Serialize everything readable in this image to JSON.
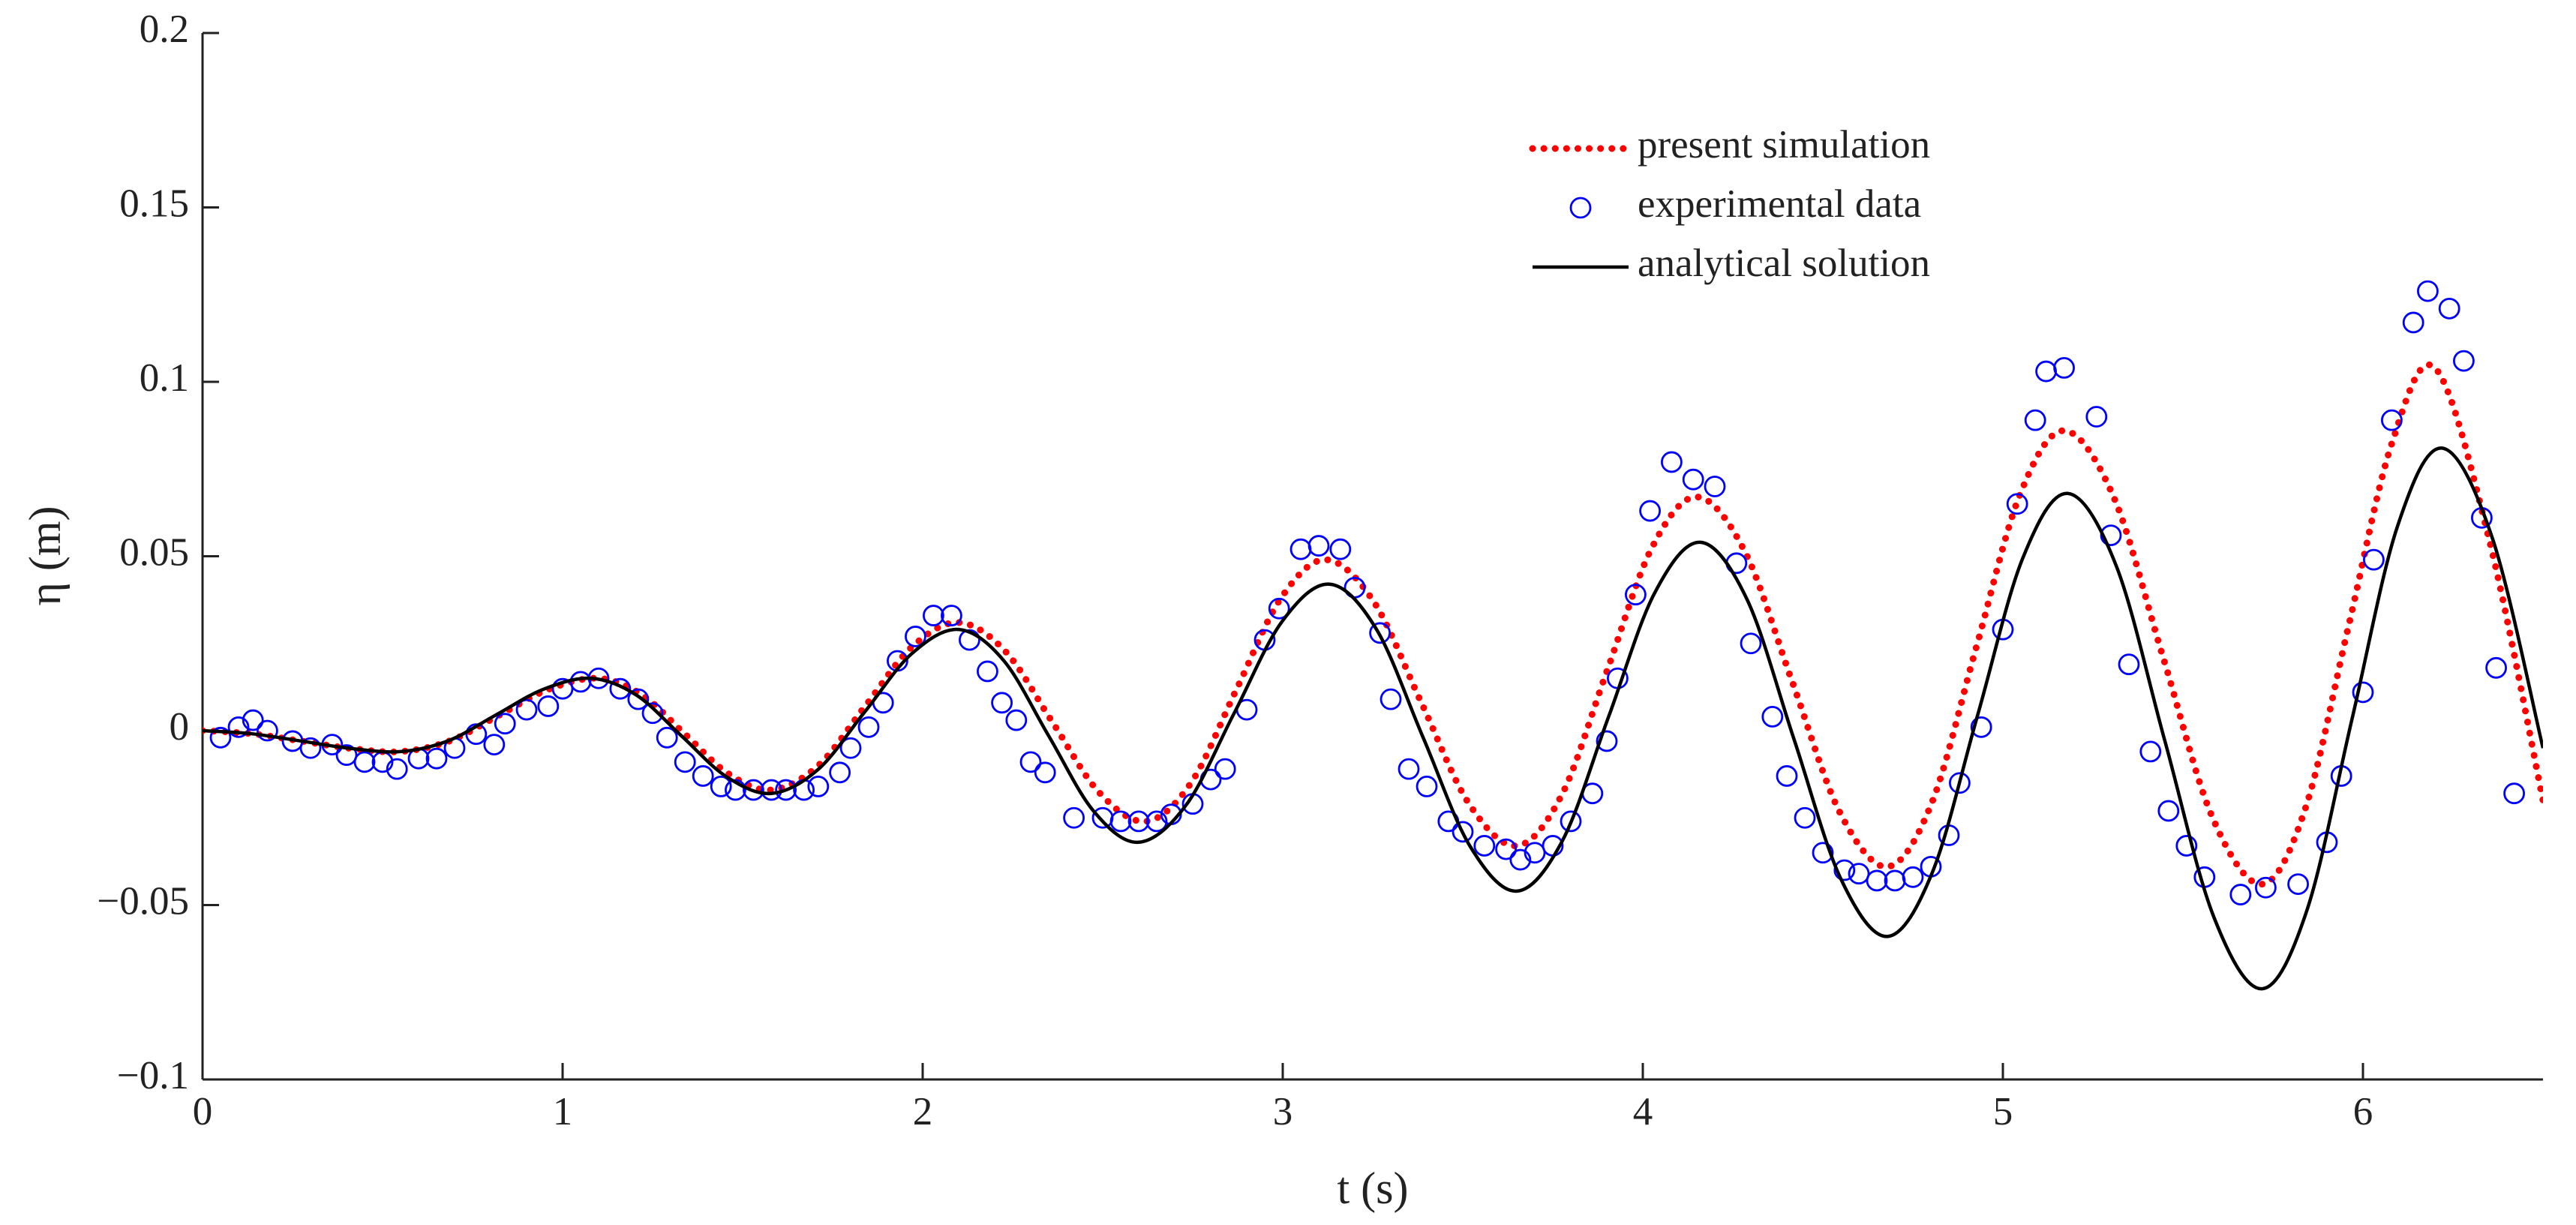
{
  "chart_data": {
    "type": "line",
    "xlabel": "t (s)",
    "ylabel": "η (m)",
    "xlim": [
      0,
      6.5
    ],
    "ylim": [
      -0.1,
      0.2
    ],
    "xticks": [
      0,
      1,
      2,
      3,
      4,
      5,
      6
    ],
    "yticks": [
      {
        "value": -0.1,
        "label": "−0.1"
      },
      {
        "value": -0.05,
        "label": "−0.05"
      },
      0,
      0.05,
      0.1,
      0.15,
      0.2
    ],
    "legend": "upper right",
    "series": [
      {
        "name": "present simulation",
        "color": "#ff0000",
        "line_style": "dotted",
        "marker": "none",
        "x": [
          0,
          0.1375,
          0.275,
          0.4125,
          0.55,
          0.6875,
          0.825,
          0.9625,
          1.1,
          1.22,
          1.34,
          1.46,
          1.58,
          1.71,
          1.84,
          1.97,
          2.1,
          2.23,
          2.36,
          2.49,
          2.62,
          2.745,
          2.87,
          2.995,
          3.12,
          3.2525,
          3.385,
          3.5175,
          3.65,
          3.775,
          3.9,
          4.025,
          4.15,
          4.2825,
          4.415,
          4.5475,
          4.68,
          4.8025,
          4.925,
          5.0475,
          5.17,
          5.3075,
          5.445,
          5.5825,
          5.72,
          5.84,
          5.96,
          6.08,
          6.2,
          6.35,
          6.5
        ],
        "values": [
          0,
          -0.0009,
          -0.003,
          -0.0051,
          -0.006,
          -0.0029,
          0.0045,
          0.0119,
          0.015,
          0.0103,
          -0.001,
          -0.0123,
          -0.017,
          -0.01,
          0.007,
          0.024,
          0.031,
          0.0227,
          0.0025,
          -0.0177,
          -0.026,
          -0.015,
          0.0115,
          0.038,
          0.049,
          0.037,
          0.008,
          -0.021,
          -0.033,
          -0.0184,
          0.017,
          0.0524,
          0.067,
          0.0515,
          0.014,
          -0.0235,
          -0.039,
          -0.0207,
          0.0235,
          0.0677,
          0.086,
          0.067,
          0.021,
          -0.025,
          -0.044,
          -0.0223,
          0.03,
          0.0823,
          0.104,
          0.055,
          -0.02
        ]
      },
      {
        "name": "experimental data",
        "color": "#0000ff",
        "line_style": "none",
        "marker": "circle",
        "x": [
          0.05,
          0.1,
          0.14,
          0.18,
          0.25,
          0.3,
          0.36,
          0.4,
          0.45,
          0.5,
          0.54,
          0.6,
          0.65,
          0.7,
          0.76,
          0.81,
          0.84,
          0.9,
          0.96,
          1.0,
          1.05,
          1.1,
          1.16,
          1.21,
          1.25,
          1.29,
          1.34,
          1.39,
          1.44,
          1.48,
          1.53,
          1.58,
          1.62,
          1.67,
          1.71,
          1.77,
          1.8,
          1.85,
          1.89,
          1.93,
          1.98,
          2.03,
          2.08,
          2.13,
          2.18,
          2.22,
          2.26,
          2.3,
          2.34,
          2.42,
          2.5,
          2.55,
          2.6,
          2.65,
          2.69,
          2.75,
          2.8,
          2.84,
          2.9,
          2.95,
          2.99,
          3.05,
          3.1,
          3.16,
          3.2,
          3.27,
          3.3,
          3.35,
          3.4,
          3.46,
          3.5,
          3.56,
          3.62,
          3.66,
          3.7,
          3.75,
          3.8,
          3.86,
          3.9,
          3.93,
          3.98,
          4.02,
          4.08,
          4.14,
          4.2,
          4.26,
          4.3,
          4.36,
          4.4,
          4.45,
          4.5,
          4.56,
          4.6,
          4.65,
          4.7,
          4.75,
          4.8,
          4.85,
          4.88,
          4.94,
          5.0,
          5.04,
          5.09,
          5.12,
          5.17,
          5.26,
          5.3,
          5.35,
          5.41,
          5.46,
          5.51,
          5.56,
          5.66,
          5.73,
          5.82,
          5.9,
          5.94,
          6.0,
          6.03,
          6.08,
          6.14,
          6.18,
          6.24,
          6.28,
          6.33,
          6.37,
          6.42
        ],
        "values": [
          -0.002,
          0.001,
          0.003,
          0.0,
          -0.003,
          -0.005,
          -0.004,
          -0.007,
          -0.009,
          -0.009,
          -0.011,
          -0.008,
          -0.008,
          -0.005,
          -0.001,
          -0.004,
          0.002,
          0.006,
          0.007,
          0.012,
          0.014,
          0.015,
          0.012,
          0.009,
          0.005,
          -0.002,
          -0.009,
          -0.013,
          -0.016,
          -0.017,
          -0.017,
          -0.017,
          -0.017,
          -0.017,
          -0.016,
          -0.012,
          -0.005,
          0.001,
          0.008,
          0.02,
          0.027,
          0.033,
          0.033,
          0.026,
          0.017,
          0.008,
          0.003,
          -0.009,
          -0.012,
          -0.025,
          -0.025,
          -0.026,
          -0.026,
          -0.026,
          -0.024,
          -0.021,
          -0.014,
          -0.011,
          0.006,
          0.026,
          0.035,
          0.052,
          0.053,
          0.052,
          0.041,
          0.028,
          0.009,
          -0.011,
          -0.016,
          -0.026,
          -0.029,
          -0.033,
          -0.034,
          -0.037,
          -0.035,
          -0.033,
          -0.026,
          -0.018,
          -0.003,
          0.015,
          0.039,
          0.063,
          0.077,
          0.072,
          0.07,
          0.048,
          0.025,
          0.004,
          -0.013,
          -0.025,
          -0.035,
          -0.04,
          -0.041,
          -0.043,
          -0.043,
          -0.042,
          -0.039,
          -0.03,
          -0.015,
          0.001,
          0.029,
          0.065,
          0.089,
          0.103,
          0.104,
          0.09,
          0.056,
          0.019,
          -0.006,
          -0.023,
          -0.033,
          -0.042,
          -0.047,
          -0.045,
          -0.044,
          -0.032,
          -0.013,
          0.011,
          0.049,
          0.089,
          0.117,
          0.126,
          0.121,
          0.106,
          0.061,
          0.018,
          -0.018
        ]
      },
      {
        "name": "analytical solution",
        "color": "#000000",
        "line_style": "solid",
        "marker": "none",
        "x": [
          0,
          0.1375,
          0.275,
          0.4125,
          0.55,
          0.6825,
          0.815,
          0.9475,
          1.08,
          1.205,
          1.33,
          1.455,
          1.58,
          1.71,
          1.84,
          1.97,
          2.1,
          2.225,
          2.35,
          2.475,
          2.6,
          2.7325,
          2.865,
          2.9975,
          3.13,
          3.26,
          3.39,
          3.52,
          3.65,
          3.7775,
          3.905,
          4.0325,
          4.16,
          4.29,
          4.42,
          4.55,
          4.68,
          4.805,
          4.93,
          5.055,
          5.18,
          5.315,
          5.45,
          5.585,
          5.72,
          5.845,
          5.97,
          6.095,
          6.22,
          6.36,
          6.5
        ],
        "values": [
          0,
          -0.0009,
          -0.003,
          -0.0051,
          -0.006,
          -0.0029,
          0.0045,
          0.0119,
          0.015,
          0.0102,
          -0.0015,
          -0.0132,
          -0.018,
          -0.0111,
          0.0055,
          0.0221,
          0.029,
          0.0201,
          -0.0015,
          -0.0231,
          -0.032,
          -0.0212,
          0.005,
          0.0312,
          0.042,
          0.0291,
          -0.002,
          -0.0331,
          -0.046,
          -0.0314,
          0.004,
          0.0394,
          0.054,
          0.0375,
          -0.0025,
          -0.0425,
          -0.059,
          -0.0404,
          0.0045,
          0.0494,
          0.068,
          0.0472,
          -0.003,
          -0.0532,
          -0.074,
          -0.0513,
          0.0035,
          0.0583,
          0.081,
          0.055,
          -0.005
        ]
      }
    ]
  }
}
